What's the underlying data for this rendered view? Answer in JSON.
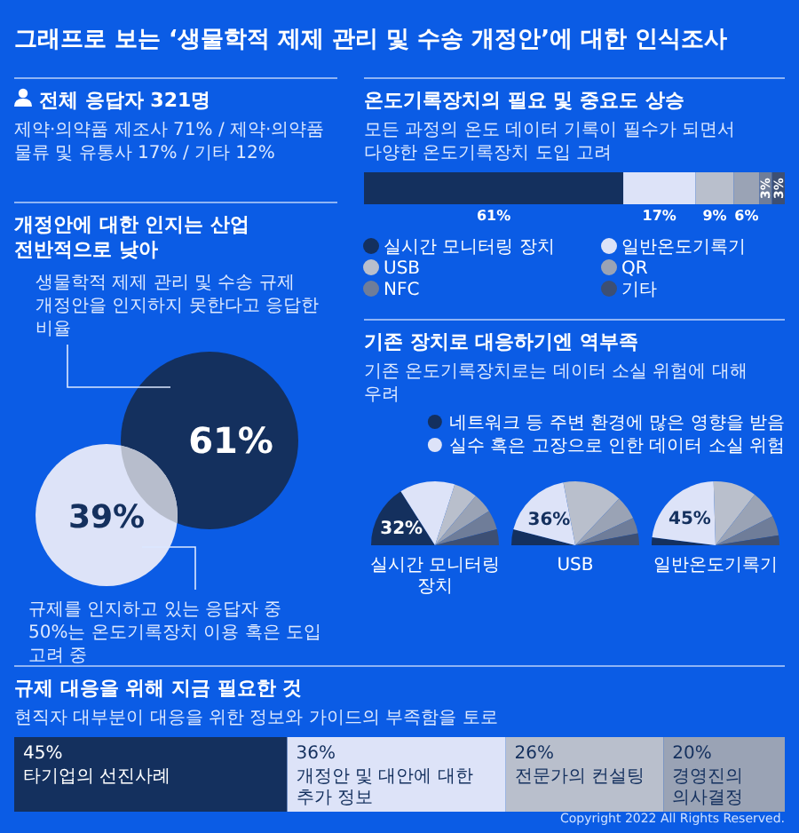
{
  "chart_data": [
    {
      "type": "other",
      "title": "그래프로 보는 ‘생물학적 제제 관리 및 수송 개정안’에 대한 인식조사",
      "subtitle": "전체 응답자 321명",
      "annotations": [
        "제약·의약품 제조사 71% / 제약·의약품 물류 및 유통사 17% / 기타 12%",
        "Copyright 2022 All Rights Reserved."
      ]
    },
    {
      "type": "other",
      "title": "개정안에 대한 인지는 산업 전반적으로 낮아",
      "categories": [
        null,
        null
      ],
      "values": [
        61,
        39
      ],
      "colors": [
        "#14305e",
        "#dde3f8"
      ],
      "value_labels": [
        "61%",
        "39%"
      ],
      "annotations": [
        "생물학적 제제 관리 및 수송 규제 개정안을 인지하지 못한다고 응답한 비율",
        "규제를 인지하고 있는 응답자 중 50%는 온도기록장치 이용 혹은 도입 고려 중"
      ]
    },
    {
      "type": "bar",
      "orientation": "horizontal",
      "stacked": true,
      "title": "온도기록장치의 필요 및 중요도 상승",
      "subtitle": "모든 과정의 온도 데이터 기록이 필수가 되면서 다양한 온도기록장치 도입 고려",
      "categories": [
        null
      ],
      "legend": "bottom",
      "series": [
        {
          "name": "실시간 모니터링 장치",
          "color": "#14305e",
          "values": [
            61
          ],
          "value_labels": [
            "61%"
          ]
        },
        {
          "name": "일반온도기록기",
          "color": "#dde3f8",
          "values": [
            17
          ],
          "value_labels": [
            "17%"
          ]
        },
        {
          "name": "USB",
          "color": "#b9bfcc",
          "values": [
            9
          ],
          "value_labels": [
            "9%"
          ]
        },
        {
          "name": "QR",
          "color": "#9aa3b5",
          "values": [
            6
          ],
          "value_labels": [
            "6%"
          ]
        },
        {
          "name": "NFC",
          "color": "#6f7d99",
          "values": [
            3
          ],
          "value_labels": [
            "3%"
          ]
        },
        {
          "name": "기타",
          "color": "#3d4f73",
          "values": [
            3
          ],
          "value_labels": [
            "3%"
          ]
        }
      ]
    },
    {
      "type": "pie",
      "title": "기존 장치로 대응하기엔 역부족",
      "subtitle": "기존 온도기록장치로는 데이터 소실 위험에 대해 우려",
      "legend": "top right",
      "categories": [
        "네트워크 등 주변 환경에 많은 영향을 받음",
        "실수 혹은 고장으로 인한 데이터 소실 위험",
        null,
        null,
        null,
        null
      ],
      "colors": [
        "#14305e",
        "#dde3f8",
        "#b9bfcc",
        "#9aa3b5",
        "#6f7d99",
        "#3d4f73"
      ],
      "series": [
        {
          "name": "실시간 모니터링 장치",
          "values": [
            32,
            28,
            12,
            10,
            10,
            8
          ],
          "value_labels": [
            "32%",
            null,
            null,
            null,
            null,
            null
          ]
        },
        {
          "name": "USB",
          "values": [
            8,
            36,
            30,
            12,
            8,
            6
          ],
          "value_labels": [
            null,
            "36%",
            null,
            null,
            null,
            null
          ]
        },
        {
          "name": "일반온도기록기",
          "values": [
            4,
            45,
            22,
            14,
            10,
            5
          ],
          "value_labels": [
            null,
            "45%",
            null,
            null,
            null,
            null
          ]
        }
      ]
    },
    {
      "type": "bar",
      "orientation": "horizontal",
      "stacked": true,
      "title": "규제 대응을 위해 지금 필요한 것",
      "subtitle": "현직자 대부분이 대응을 위한 정보와 가이드의 부족함을 토로",
      "categories": [
        null
      ],
      "legend": false,
      "series": [
        {
          "name": "타기업의 선진사례",
          "color": "#14305e",
          "values": [
            45
          ],
          "value_labels": [
            "45%"
          ]
        },
        {
          "name": "개정안 및 대안에 대한 추가 정보",
          "color": "#dde3f8",
          "values": [
            36
          ],
          "value_labels": [
            "36%"
          ]
        },
        {
          "name": "전문가의 컨설팅",
          "color": "#b9bfcc",
          "values": [
            26
          ],
          "value_labels": [
            "26%"
          ]
        },
        {
          "name": "경영진의 의사결정",
          "color": "#9aa3b5",
          "values": [
            20
          ],
          "value_labels": [
            "20%"
          ]
        }
      ]
    }
  ]
}
